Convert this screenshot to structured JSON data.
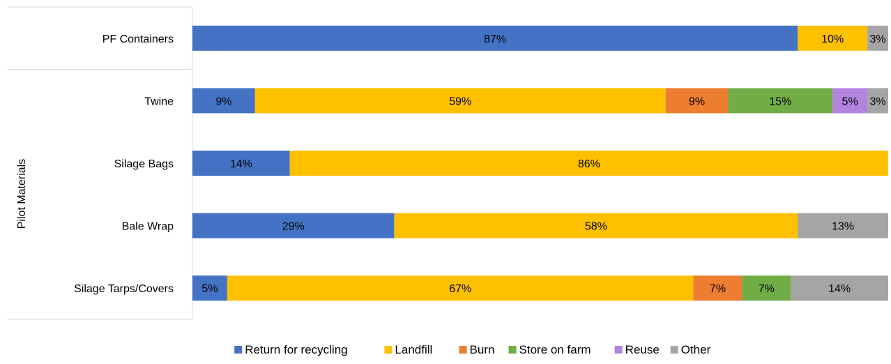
{
  "chart_data": {
    "type": "bar",
    "orientation": "horizontal",
    "stacked": true,
    "ylabel": "Pilot Materials",
    "xlabel": "",
    "xlim": [
      0,
      100
    ],
    "grid": false,
    "legend_position": "bottom",
    "categories": [
      "PF Containers",
      "Twine",
      "Silage Bags",
      "Bale Wrap",
      "Silage Tarps/Covers"
    ],
    "category_groups": [
      [
        "PF Containers"
      ],
      [
        "Twine",
        "Silage Bags",
        "Bale Wrap",
        "Silage Tarps/Covers"
      ]
    ],
    "series": [
      {
        "name": "Return for recycling",
        "color": "#4472C4",
        "values": [
          87,
          9,
          14,
          29,
          5
        ],
        "labels": [
          "87%",
          "9%",
          "14%",
          "29%",
          "5%"
        ]
      },
      {
        "name": "Landfill",
        "color": "#FFC000",
        "values": [
          10,
          59,
          86,
          58,
          67
        ],
        "labels": [
          "10%",
          "59%",
          "86%",
          "58%",
          "67%"
        ]
      },
      {
        "name": "Burn",
        "color": "#ED7D31",
        "values": [
          0,
          9,
          0,
          0,
          7
        ],
        "labels": [
          "",
          "9%",
          "",
          "",
          "7%"
        ]
      },
      {
        "name": "Store on farm",
        "color": "#70AD47",
        "values": [
          0,
          15,
          0,
          0,
          7
        ],
        "labels": [
          "",
          "15%",
          "",
          "",
          "7%"
        ]
      },
      {
        "name": "Reuse",
        "color": "#B383E0",
        "values": [
          0,
          5,
          0,
          0,
          0
        ],
        "labels": [
          "",
          "5%",
          "",
          "",
          ""
        ]
      },
      {
        "name": "Other",
        "color": "#A5A5A5",
        "values": [
          3,
          3,
          0,
          13,
          14
        ],
        "labels": [
          "3%",
          "3%",
          "",
          "13%",
          "14%"
        ]
      }
    ]
  }
}
